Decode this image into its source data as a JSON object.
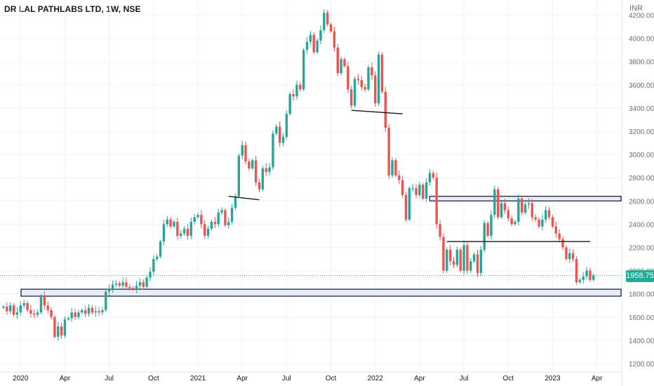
{
  "chart_data": {
    "type": "candlestick",
    "title": "DR LAL PATHLABS LTD, 1W, NSE",
    "currency": "INR",
    "last_price": "1958.75",
    "ylim": [
      1150,
      4300
    ],
    "y_ticks": [
      1200,
      1400,
      1600,
      1800,
      2000,
      2200,
      2400,
      2600,
      2800,
      3000,
      3200,
      3400,
      3600,
      3800,
      4000,
      4200
    ],
    "x_ticks": [
      {
        "label": "2020",
        "bar": 5
      },
      {
        "label": "Apr",
        "bar": 18
      },
      {
        "label": "Jul",
        "bar": 31
      },
      {
        "label": "Oct",
        "bar": 44
      },
      {
        "label": "2021",
        "bar": 57
      },
      {
        "label": "Apr",
        "bar": 70
      },
      {
        "label": "Jul",
        "bar": 83
      },
      {
        "label": "Oct",
        "bar": 96
      },
      {
        "label": "2022",
        "bar": 109
      },
      {
        "label": "Apr",
        "bar": 122
      },
      {
        "label": "Jul",
        "bar": 135
      },
      {
        "label": "Oct",
        "bar": 148
      },
      {
        "label": "2023",
        "bar": 161
      },
      {
        "label": "Apr",
        "bar": 174
      }
    ],
    "closes": [
      1690,
      1650,
      1700,
      1620,
      1640,
      1700,
      1720,
      1660,
      1630,
      1620,
      1640,
      1780,
      1700,
      1660,
      1600,
      1430,
      1520,
      1440,
      1580,
      1590,
      1640,
      1600,
      1640,
      1660,
      1630,
      1680,
      1640,
      1650,
      1640,
      1660,
      1820,
      1840,
      1880,
      1890,
      1870,
      1900,
      1860,
      1850,
      1840,
      1870,
      1900,
      1860,
      1940,
      1990,
      2100,
      2120,
      2250,
      2400,
      2440,
      2380,
      2420,
      2300,
      2320,
      2360,
      2300,
      2420,
      2460,
      2480,
      2400,
      2300,
      2360,
      2420,
      2400,
      2500,
      2520,
      2390,
      2420,
      2540,
      2640,
      2990,
      3080,
      2940,
      2880,
      2950,
      2760,
      2700,
      2880,
      2850,
      2890,
      3180,
      3240,
      3100,
      3150,
      3350,
      3520,
      3500,
      3600,
      3560,
      3900,
      3970,
      4030,
      3880,
      3980,
      4070,
      4220,
      4120,
      4060,
      3920,
      3700,
      3820,
      3760,
      3560,
      3420,
      3650,
      3640,
      3580,
      3560,
      3750,
      3680,
      3440,
      3860,
      3540,
      3230,
      2820,
      2950,
      2820,
      2780,
      2650,
      2440,
      2710,
      2710,
      2650,
      2740,
      2620,
      2760,
      2840,
      2800,
      2400,
      2290,
      2000,
      2180,
      2080,
      2050,
      2180,
      2000,
      2220,
      2000,
      2080,
      2140,
      1980,
      2180,
      2410,
      2300,
      2480,
      2700,
      2460,
      2580,
      2520,
      2450,
      2400,
      2420,
      2620,
      2500,
      2570,
      2580,
      2460,
      2440,
      2380,
      2440,
      2520,
      2460,
      2380,
      2320,
      2270,
      2200,
      2100,
      2150,
      2100,
      1900,
      1920,
      1950,
      2000,
      1920,
      1958.75
    ],
    "open_first": 1680,
    "annotations": [
      {
        "kind": "zone",
        "price_low": 1780,
        "price_high": 1840,
        "from_bar": 0,
        "to_bar": 178
      },
      {
        "kind": "zone",
        "price_low": 2600,
        "price_high": 2640,
        "from_bar": 125,
        "to_bar": 178
      },
      {
        "kind": "line",
        "from_bar": 66,
        "from_price": 2640,
        "to_bar": 75,
        "to_price": 2610
      },
      {
        "kind": "line",
        "from_bar": 102,
        "from_price": 3380,
        "to_bar": 117,
        "to_price": 3350
      },
      {
        "kind": "line",
        "from_bar": 130,
        "from_price": 2250,
        "to_bar": 172,
        "to_price": 2250
      }
    ],
    "colors": {
      "up": "#26a69a",
      "down": "#ef5350",
      "zone_fill": "#e6ecfb",
      "zone_stroke": "#131722",
      "line": "#131722",
      "price_tag": "#22ab94"
    }
  }
}
